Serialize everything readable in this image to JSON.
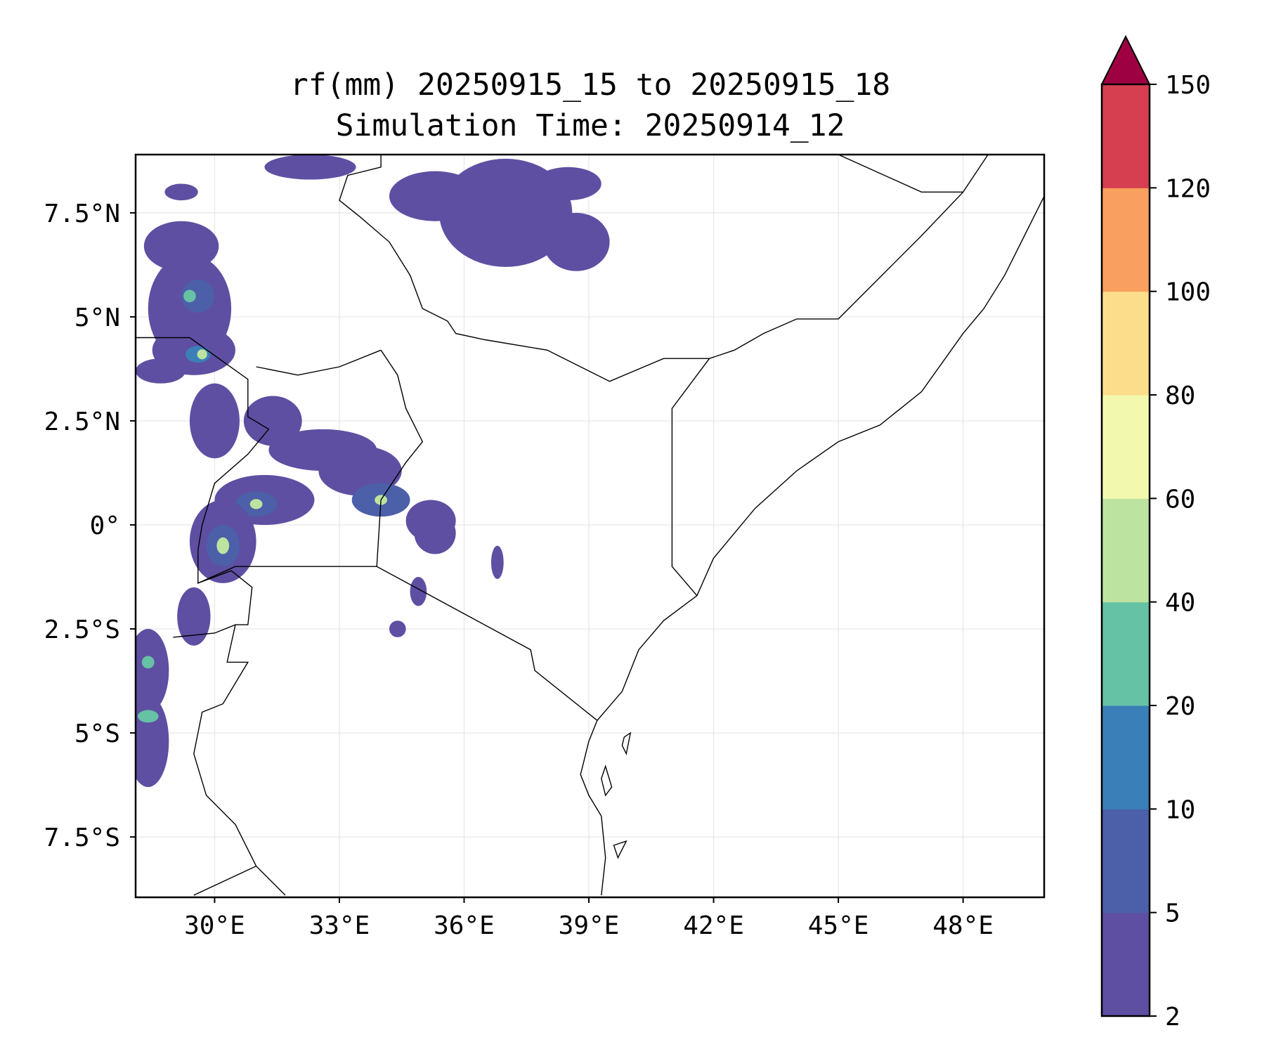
{
  "title": {
    "line1": "rf(mm) 20250915_15 to 20250915_18",
    "line2": "Simulation Time: 20250914_12"
  },
  "map": {
    "extent": {
      "lon_min": 28.1,
      "lon_max": 49.95,
      "lat_min": -8.95,
      "lat_max": 8.9
    },
    "grid": true,
    "x_ticks": [
      {
        "value": 30,
        "label": "30°E"
      },
      {
        "value": 33,
        "label": "33°E"
      },
      {
        "value": 36,
        "label": "36°E"
      },
      {
        "value": 39,
        "label": "39°E"
      },
      {
        "value": 42,
        "label": "42°E"
      },
      {
        "value": 45,
        "label": "45°E"
      },
      {
        "value": 48,
        "label": "48°E"
      }
    ],
    "y_ticks": [
      {
        "value": 7.5,
        "label": "7.5°N"
      },
      {
        "value": 5,
        "label": "5°N"
      },
      {
        "value": 2.5,
        "label": "2.5°N"
      },
      {
        "value": 0,
        "label": "0°"
      },
      {
        "value": -2.5,
        "label": "2.5°S"
      },
      {
        "value": -5,
        "label": "5°S"
      },
      {
        "value": -7.5,
        "label": "7.5°S"
      }
    ],
    "borders": [
      [
        [
          29.5,
          -8.9
        ],
        [
          31.0,
          -8.2
        ]
      ],
      [
        [
          34.0,
          8.9
        ],
        [
          34.0,
          8.6
        ],
        [
          33.2,
          8.4
        ],
        [
          33.0,
          7.8
        ],
        [
          33.5,
          7.4
        ],
        [
          34.2,
          6.8
        ],
        [
          34.7,
          6.0
        ],
        [
          35.0,
          5.2
        ],
        [
          35.6,
          4.9
        ],
        [
          35.8,
          4.6
        ],
        [
          36.5,
          4.45
        ],
        [
          38.0,
          4.2
        ],
        [
          39.5,
          3.45
        ],
        [
          40.8,
          4.0
        ],
        [
          41.9,
          4.0
        ],
        [
          42.5,
          4.2
        ],
        [
          43.2,
          4.6
        ],
        [
          44.0,
          4.95
        ],
        [
          45.0,
          4.95
        ],
        [
          47.0,
          6.95
        ],
        [
          48.0,
          8.0
        ],
        [
          48.6,
          8.9
        ]
      ],
      [
        [
          45.0,
          8.9
        ],
        [
          47.0,
          8.0
        ],
        [
          48.0,
          8.0
        ]
      ],
      [
        [
          41.9,
          4.0
        ],
        [
          41.0,
          2.8
        ],
        [
          41.0,
          -1.0
        ],
        [
          41.6,
          -1.7
        ]
      ],
      [
        [
          34.0,
          4.2
        ],
        [
          34.4,
          3.6
        ],
        [
          34.6,
          2.8
        ],
        [
          35.0,
          2.0
        ],
        [
          34.6,
          1.5
        ],
        [
          34.0,
          0.6
        ],
        [
          33.9,
          -1.0
        ],
        [
          37.6,
          -3.0
        ],
        [
          37.7,
          -3.5
        ],
        [
          39.2,
          -4.7
        ]
      ],
      [
        [
          33.9,
          -1.0
        ],
        [
          30.5,
          -1.0
        ]
      ],
      [
        [
          31.0,
          3.8
        ],
        [
          32.0,
          3.6
        ],
        [
          33.0,
          3.8
        ],
        [
          34.0,
          4.2
        ]
      ],
      [
        [
          29.4,
          4.5
        ],
        [
          30.8,
          3.5
        ],
        [
          30.8,
          2.6
        ],
        [
          31.3,
          2.3
        ],
        [
          30.8,
          1.7
        ],
        [
          30.0,
          1.0
        ],
        [
          29.7,
          0.0
        ],
        [
          29.6,
          -0.6
        ],
        [
          29.6,
          -1.4
        ],
        [
          30.5,
          -1.0
        ]
      ],
      [
        [
          29.6,
          -1.4
        ],
        [
          30.4,
          -1.1
        ],
        [
          30.9,
          -1.5
        ],
        [
          30.8,
          -2.4
        ],
        [
          30.5,
          -2.4
        ],
        [
          30.0,
          -2.6
        ],
        [
          29.0,
          -2.7
        ]
      ],
      [
        [
          30.5,
          -2.4
        ],
        [
          30.3,
          -3.3
        ],
        [
          30.8,
          -3.3
        ],
        [
          30.2,
          -4.3
        ],
        [
          29.7,
          -4.5
        ],
        [
          29.5,
          -5.5
        ],
        [
          29.8,
          -6.5
        ],
        [
          30.5,
          -7.2
        ],
        [
          31.0,
          -8.2
        ],
        [
          31.7,
          -8.9
        ]
      ],
      [
        [
          28.1,
          4.5
        ],
        [
          28.8,
          4.5
        ],
        [
          29.4,
          4.5
        ]
      ]
    ],
    "coastline": [
      [
        50.0,
        8.0
      ],
      [
        49.5,
        7.0
      ],
      [
        49.0,
        6.0
      ],
      [
        48.5,
        5.2
      ],
      [
        48.0,
        4.6
      ],
      [
        47.0,
        3.2
      ],
      [
        46.0,
        2.4
      ],
      [
        45.0,
        2.0
      ],
      [
        44.0,
        1.3
      ],
      [
        43.0,
        0.4
      ],
      [
        42.0,
        -0.8
      ],
      [
        41.6,
        -1.7
      ],
      [
        40.8,
        -2.3
      ],
      [
        40.2,
        -3.0
      ],
      [
        39.8,
        -4.0
      ],
      [
        39.2,
        -4.7
      ],
      [
        39.0,
        -5.2
      ],
      [
        38.8,
        -6.0
      ],
      [
        39.0,
        -6.5
      ],
      [
        39.3,
        -7.0
      ],
      [
        39.4,
        -8.0
      ],
      [
        39.3,
        -8.9
      ]
    ],
    "islands": [
      [
        [
          40.0,
          -5.0
        ],
        [
          39.9,
          -5.5
        ],
        [
          39.8,
          -5.3
        ],
        [
          39.85,
          -5.1
        ]
      ],
      [
        [
          39.4,
          -5.8
        ],
        [
          39.55,
          -6.3
        ],
        [
          39.4,
          -6.5
        ],
        [
          39.3,
          -6.1
        ]
      ],
      [
        [
          39.6,
          -7.7
        ],
        [
          39.9,
          -7.6
        ],
        [
          39.7,
          -8.0
        ]
      ]
    ],
    "precip_legend_colors": [
      "#5e4fa2",
      "#4c5fa9",
      "#3a7fb8",
      "#66c2a5",
      "#bde3a0",
      "#f2f9ae",
      "#fcdd8c",
      "#f99f5f",
      "#d53f50",
      "#9e0142"
    ]
  },
  "chart_data": {
    "type": "heatmap",
    "title": "rf(mm) 20250915_15 to 20250915_18",
    "subtitle": "Simulation Time: 20250914_12",
    "xlabel": "",
    "ylabel": "",
    "xlim": [
      28.1,
      49.95
    ],
    "ylim": [
      -8.95,
      8.9
    ],
    "colorbar": {
      "boundaries": [
        2,
        5,
        10,
        20,
        40,
        60,
        80,
        100,
        120,
        150
      ],
      "labels": [
        "2",
        "5",
        "10",
        "20",
        "40",
        "60",
        "80",
        "100",
        "120",
        "150"
      ],
      "colors": [
        "#5e4fa2",
        "#4c5fa9",
        "#3a7fb8",
        "#66c2a5",
        "#bde3a0",
        "#f2f9ae",
        "#fcdd8c",
        "#f99f5f",
        "#d53f50"
      ],
      "extend_max_color": "#9e0142"
    },
    "precip_cells": [
      {
        "lon": 29.2,
        "lat": 6.7,
        "rx": 0.9,
        "ry": 0.6,
        "level": 0
      },
      {
        "lon": 29.4,
        "lat": 5.2,
        "rx": 1.0,
        "ry": 1.3,
        "level": 0
      },
      {
        "lon": 29.6,
        "lat": 5.5,
        "rx": 0.4,
        "ry": 0.4,
        "level": 1
      },
      {
        "lon": 29.4,
        "lat": 5.5,
        "rx": 0.15,
        "ry": 0.15,
        "level": 3
      },
      {
        "lon": 29.5,
        "lat": 4.2,
        "rx": 1.0,
        "ry": 0.6,
        "level": 0
      },
      {
        "lon": 29.6,
        "lat": 4.1,
        "rx": 0.3,
        "ry": 0.2,
        "level": 2
      },
      {
        "lon": 29.7,
        "lat": 4.1,
        "rx": 0.12,
        "ry": 0.12,
        "level": 4
      },
      {
        "lon": 28.7,
        "lat": 3.7,
        "rx": 0.6,
        "ry": 0.3,
        "level": 0
      },
      {
        "lon": 30.0,
        "lat": 2.5,
        "rx": 0.6,
        "ry": 0.9,
        "level": 0
      },
      {
        "lon": 31.4,
        "lat": 2.5,
        "rx": 0.7,
        "ry": 0.6,
        "level": 0
      },
      {
        "lon": 32.6,
        "lat": 1.8,
        "rx": 1.3,
        "ry": 0.5,
        "level": 0
      },
      {
        "lon": 33.5,
        "lat": 1.3,
        "rx": 1.0,
        "ry": 0.6,
        "level": 0
      },
      {
        "lon": 34.0,
        "lat": 0.6,
        "rx": 0.7,
        "ry": 0.4,
        "level": 1
      },
      {
        "lon": 34.0,
        "lat": 0.6,
        "rx": 0.15,
        "ry": 0.12,
        "level": 4
      },
      {
        "lon": 35.2,
        "lat": 0.1,
        "rx": 0.6,
        "ry": 0.5,
        "level": 0
      },
      {
        "lon": 35.3,
        "lat": -0.2,
        "rx": 0.5,
        "ry": 0.5,
        "level": 0
      },
      {
        "lon": 31.2,
        "lat": 0.6,
        "rx": 1.2,
        "ry": 0.6,
        "level": 0
      },
      {
        "lon": 31.0,
        "lat": 0.5,
        "rx": 0.5,
        "ry": 0.3,
        "level": 1
      },
      {
        "lon": 31.0,
        "lat": 0.5,
        "rx": 0.15,
        "ry": 0.12,
        "level": 4
      },
      {
        "lon": 30.2,
        "lat": -0.4,
        "rx": 0.8,
        "ry": 1.0,
        "level": 0
      },
      {
        "lon": 30.2,
        "lat": -0.5,
        "rx": 0.4,
        "ry": 0.5,
        "level": 1
      },
      {
        "lon": 30.2,
        "lat": -0.5,
        "rx": 0.15,
        "ry": 0.2,
        "level": 4
      },
      {
        "lon": 29.5,
        "lat": -2.2,
        "rx": 0.4,
        "ry": 0.7,
        "level": 0
      },
      {
        "lon": 28.4,
        "lat": -3.5,
        "rx": 0.5,
        "ry": 1.0,
        "level": 0
      },
      {
        "lon": 28.4,
        "lat": -3.3,
        "rx": 0.15,
        "ry": 0.15,
        "level": 3
      },
      {
        "lon": 28.4,
        "lat": -5.2,
        "rx": 0.5,
        "ry": 1.1,
        "level": 0
      },
      {
        "lon": 28.4,
        "lat": -4.6,
        "rx": 0.25,
        "ry": 0.15,
        "level": 3
      },
      {
        "lon": 34.9,
        "lat": -1.6,
        "rx": 0.2,
        "ry": 0.35,
        "level": 0
      },
      {
        "lon": 36.8,
        "lat": -0.9,
        "rx": 0.15,
        "ry": 0.4,
        "level": 0
      },
      {
        "lon": 34.4,
        "lat": -2.5,
        "rx": 0.2,
        "ry": 0.2,
        "level": 0
      },
      {
        "lon": 35.3,
        "lat": 7.9,
        "rx": 1.1,
        "ry": 0.6,
        "level": 0
      },
      {
        "lon": 37.0,
        "lat": 7.5,
        "rx": 1.6,
        "ry": 1.3,
        "level": 0
      },
      {
        "lon": 38.7,
        "lat": 6.8,
        "rx": 0.8,
        "ry": 0.7,
        "level": 0
      },
      {
        "lon": 32.3,
        "lat": 8.6,
        "rx": 1.1,
        "ry": 0.3,
        "level": 0
      },
      {
        "lon": 38.5,
        "lat": 8.2,
        "rx": 0.8,
        "ry": 0.4,
        "level": 0
      },
      {
        "lon": 29.2,
        "lat": 8.0,
        "rx": 0.4,
        "ry": 0.2,
        "level": 0
      }
    ]
  }
}
